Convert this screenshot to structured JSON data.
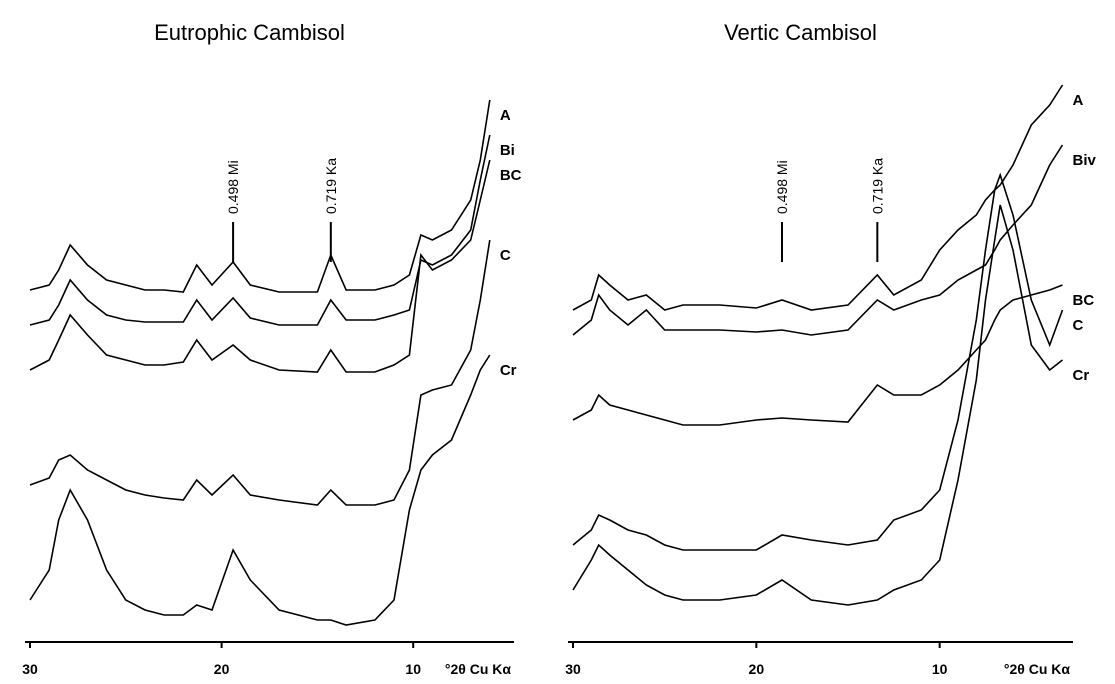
{
  "chart_data": [
    {
      "type": "line",
      "title": "Eutrophic Cambisol",
      "xlabel": "°2θ Cu Kα",
      "x": [
        30,
        29,
        28.5,
        27.9,
        27,
        26,
        25,
        24,
        23,
        22,
        21.3,
        20.5,
        19.4,
        18.5,
        17,
        15,
        14.3,
        13.5,
        12,
        11,
        10.2,
        9.6,
        9,
        8,
        7,
        6.5,
        6
      ],
      "xlim": [
        30,
        5
      ],
      "xticks": [
        30,
        20,
        10
      ],
      "ylim": [
        0,
        570
      ],
      "annotations": [
        {
          "text": "0.498 Mi",
          "x": 19.4
        },
        {
          "text": "0.719 Ka",
          "x": 14.3
        }
      ],
      "series": [
        {
          "name": "A",
          "color": "#000000",
          "values": [
            340,
            345,
            360,
            385,
            365,
            350,
            345,
            340,
            340,
            338,
            365,
            345,
            368,
            345,
            338,
            338,
            375,
            340,
            340,
            345,
            355,
            395,
            390,
            400,
            430,
            470,
            530
          ]
        },
        {
          "name": "Bi",
          "color": "#000000",
          "values": [
            305,
            310,
            325,
            350,
            330,
            315,
            310,
            308,
            308,
            308,
            330,
            310,
            332,
            312,
            305,
            305,
            330,
            310,
            310,
            315,
            320,
            370,
            365,
            375,
            400,
            450,
            495
          ]
        },
        {
          "name": "BC",
          "color": "#000000",
          "values": [
            260,
            270,
            290,
            315,
            295,
            275,
            270,
            265,
            265,
            268,
            290,
            270,
            285,
            270,
            260,
            258,
            280,
            258,
            258,
            265,
            275,
            375,
            360,
            370,
            390,
            430,
            470
          ]
        },
        {
          "name": "C",
          "color": "#000000",
          "values": [
            145,
            152,
            170,
            175,
            160,
            150,
            140,
            135,
            132,
            130,
            150,
            135,
            155,
            135,
            130,
            125,
            140,
            125,
            125,
            130,
            160,
            235,
            240,
            245,
            280,
            330,
            390
          ]
        },
        {
          "name": "Cr",
          "color": "#000000",
          "values": [
            30,
            60,
            110,
            140,
            110,
            60,
            30,
            20,
            15,
            15,
            25,
            20,
            80,
            50,
            20,
            10,
            10,
            5,
            10,
            30,
            120,
            160,
            175,
            190,
            235,
            260,
            275
          ]
        }
      ]
    },
    {
      "type": "line",
      "title": "Vertic Cambisol",
      "xlabel": "°2θ Cu Kα",
      "x": [
        30,
        29,
        28.6,
        28,
        27,
        26,
        25,
        24,
        22,
        20,
        18.6,
        17,
        15,
        13.4,
        12.5,
        11,
        10,
        9,
        8,
        7.5,
        7,
        6.7,
        6,
        5,
        4,
        3.3
      ],
      "xlim": [
        30,
        3
      ],
      "xticks": [
        30,
        20,
        10
      ],
      "ylim": [
        0,
        570
      ],
      "annotations": [
        {
          "text": "0.498 Mi",
          "x": 18.6
        },
        {
          "text": "0.719 Ka",
          "x": 13.4
        }
      ],
      "series": [
        {
          "name": "A",
          "color": "#000000",
          "values": [
            320,
            330,
            355,
            345,
            330,
            335,
            320,
            325,
            325,
            322,
            330,
            320,
            325,
            355,
            335,
            350,
            380,
            400,
            415,
            430,
            440,
            445,
            465,
            505,
            525,
            545
          ]
        },
        {
          "name": "Biv",
          "color": "#000000",
          "values": [
            295,
            310,
            335,
            320,
            305,
            320,
            300,
            300,
            300,
            298,
            300,
            295,
            300,
            330,
            320,
            330,
            335,
            350,
            360,
            365,
            380,
            390,
            405,
            425,
            465,
            485
          ]
        },
        {
          "name": "BC",
          "color": "#000000",
          "values": [
            210,
            220,
            235,
            225,
            220,
            215,
            210,
            205,
            205,
            210,
            212,
            210,
            208,
            245,
            235,
            235,
            245,
            260,
            280,
            290,
            310,
            320,
            330,
            335,
            340,
            345
          ]
        },
        {
          "name": "C",
          "color": "#000000",
          "values": [
            85,
            100,
            115,
            110,
            100,
            95,
            85,
            80,
            80,
            80,
            95,
            90,
            85,
            90,
            110,
            120,
            140,
            210,
            310,
            380,
            440,
            455,
            415,
            330,
            285,
            320
          ]
        },
        {
          "name": "Cr",
          "color": "#000000",
          "values": [
            40,
            70,
            85,
            75,
            60,
            45,
            35,
            30,
            30,
            35,
            50,
            30,
            25,
            30,
            40,
            50,
            70,
            150,
            250,
            330,
            390,
            425,
            380,
            285,
            260,
            270
          ]
        }
      ]
    }
  ]
}
